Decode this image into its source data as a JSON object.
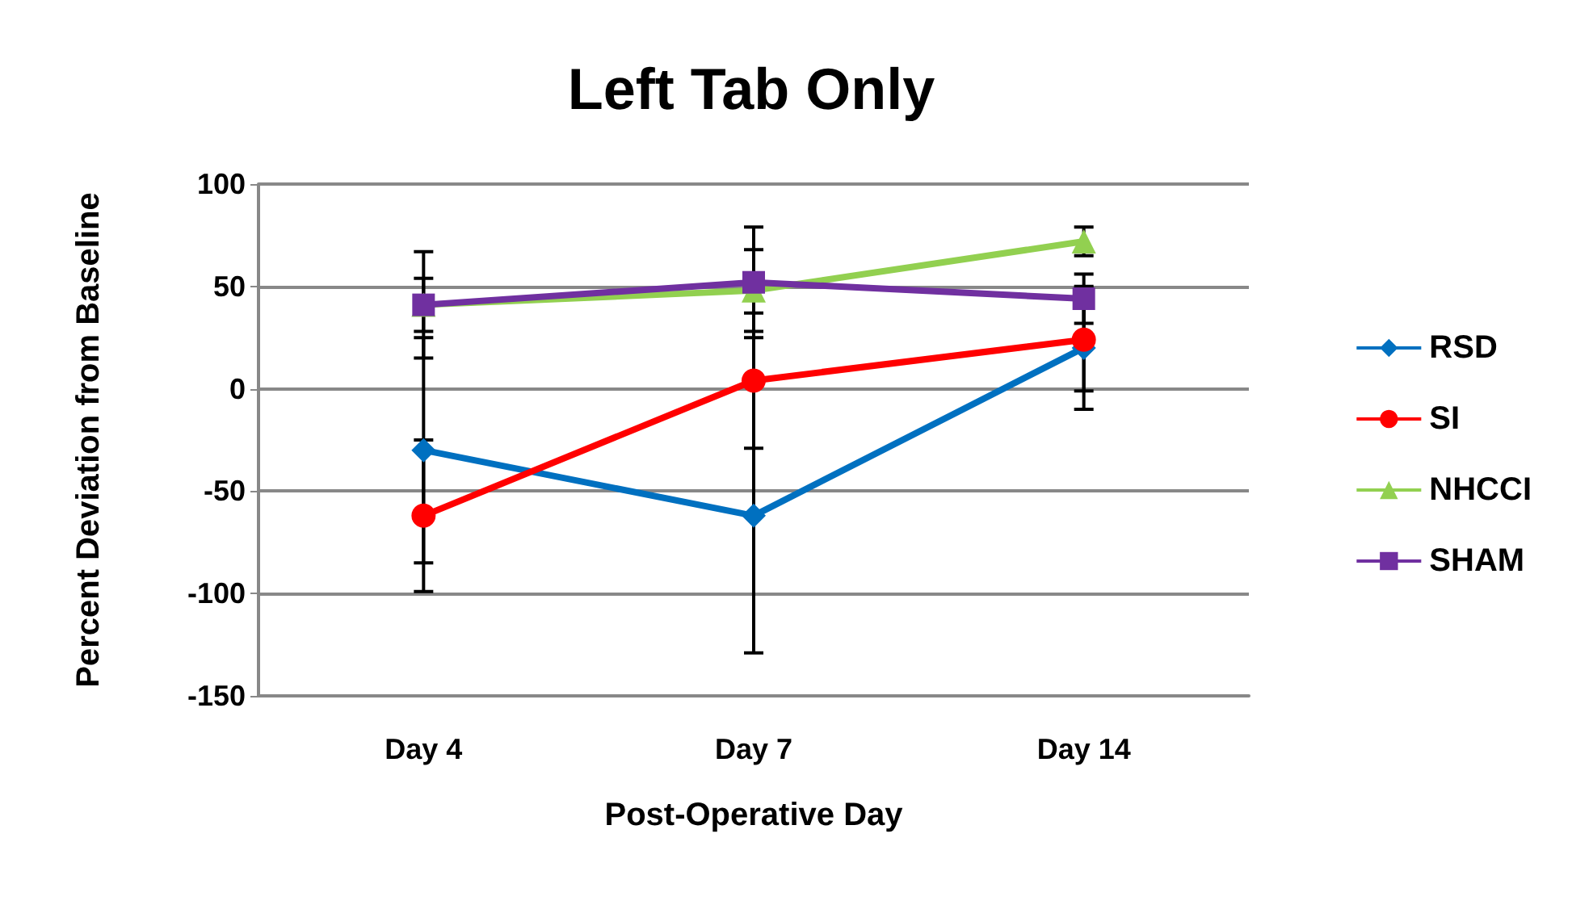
{
  "chart_data": {
    "type": "line",
    "title": "Left Tab Only",
    "xlabel": "Post-Operative Day",
    "ylabel": "Percent Deviation from Baseline",
    "categories": [
      "Day 4",
      "Day 7",
      "Day 14"
    ],
    "series": [
      {
        "name": "RSD",
        "color": "#0070c0",
        "marker": "diamond",
        "values": [
          -30,
          -62,
          20
        ],
        "errors": [
          55,
          67,
          30
        ]
      },
      {
        "name": "SI",
        "color": "#ff0000",
        "marker": "circle",
        "values": [
          -62,
          4,
          24
        ],
        "errors": [
          37,
          33,
          25
        ]
      },
      {
        "name": "NHCCI",
        "color": "#92d050",
        "marker": "triangle",
        "values": [
          41,
          48,
          72
        ],
        "errors": [
          13,
          20,
          7
        ]
      },
      {
        "name": "SHAM",
        "color": "#7030a0",
        "marker": "square",
        "values": [
          41,
          52,
          44
        ],
        "errors": [
          26,
          27,
          12
        ]
      }
    ],
    "ylim": [
      -150,
      100
    ],
    "yticks": [
      -150,
      -100,
      -50,
      0,
      50,
      100
    ],
    "grid": "y",
    "legend": "right"
  }
}
